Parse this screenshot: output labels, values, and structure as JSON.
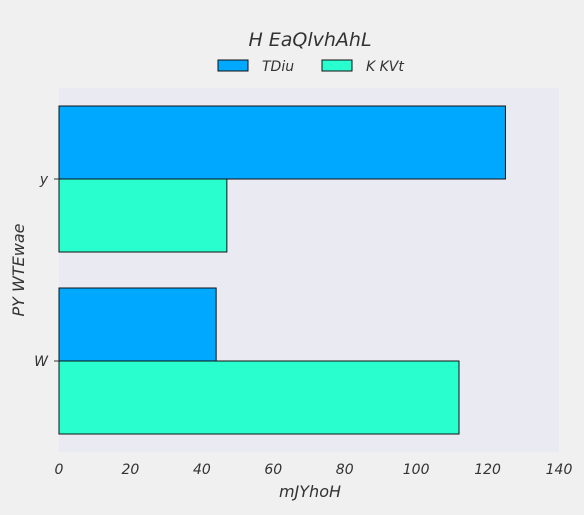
{
  "chart_data": {
    "type": "bar",
    "orientation": "horizontal",
    "title": "H EaQlvhAhL",
    "xlabel": "mJYhoH",
    "ylabel": "PY WTEwae",
    "categories": [
      "y",
      "W"
    ],
    "series": [
      {
        "name": "TDiu",
        "values": [
          125,
          44
        ],
        "color": "#00a8ff"
      },
      {
        "name": "K KVt",
        "values": [
          47,
          112
        ],
        "color": "#29ffce"
      }
    ],
    "xlim": [
      0,
      140
    ],
    "xticks": [
      0,
      20,
      40,
      60,
      80,
      100,
      120,
      140
    ],
    "legend": "top-center",
    "grid": false
  }
}
